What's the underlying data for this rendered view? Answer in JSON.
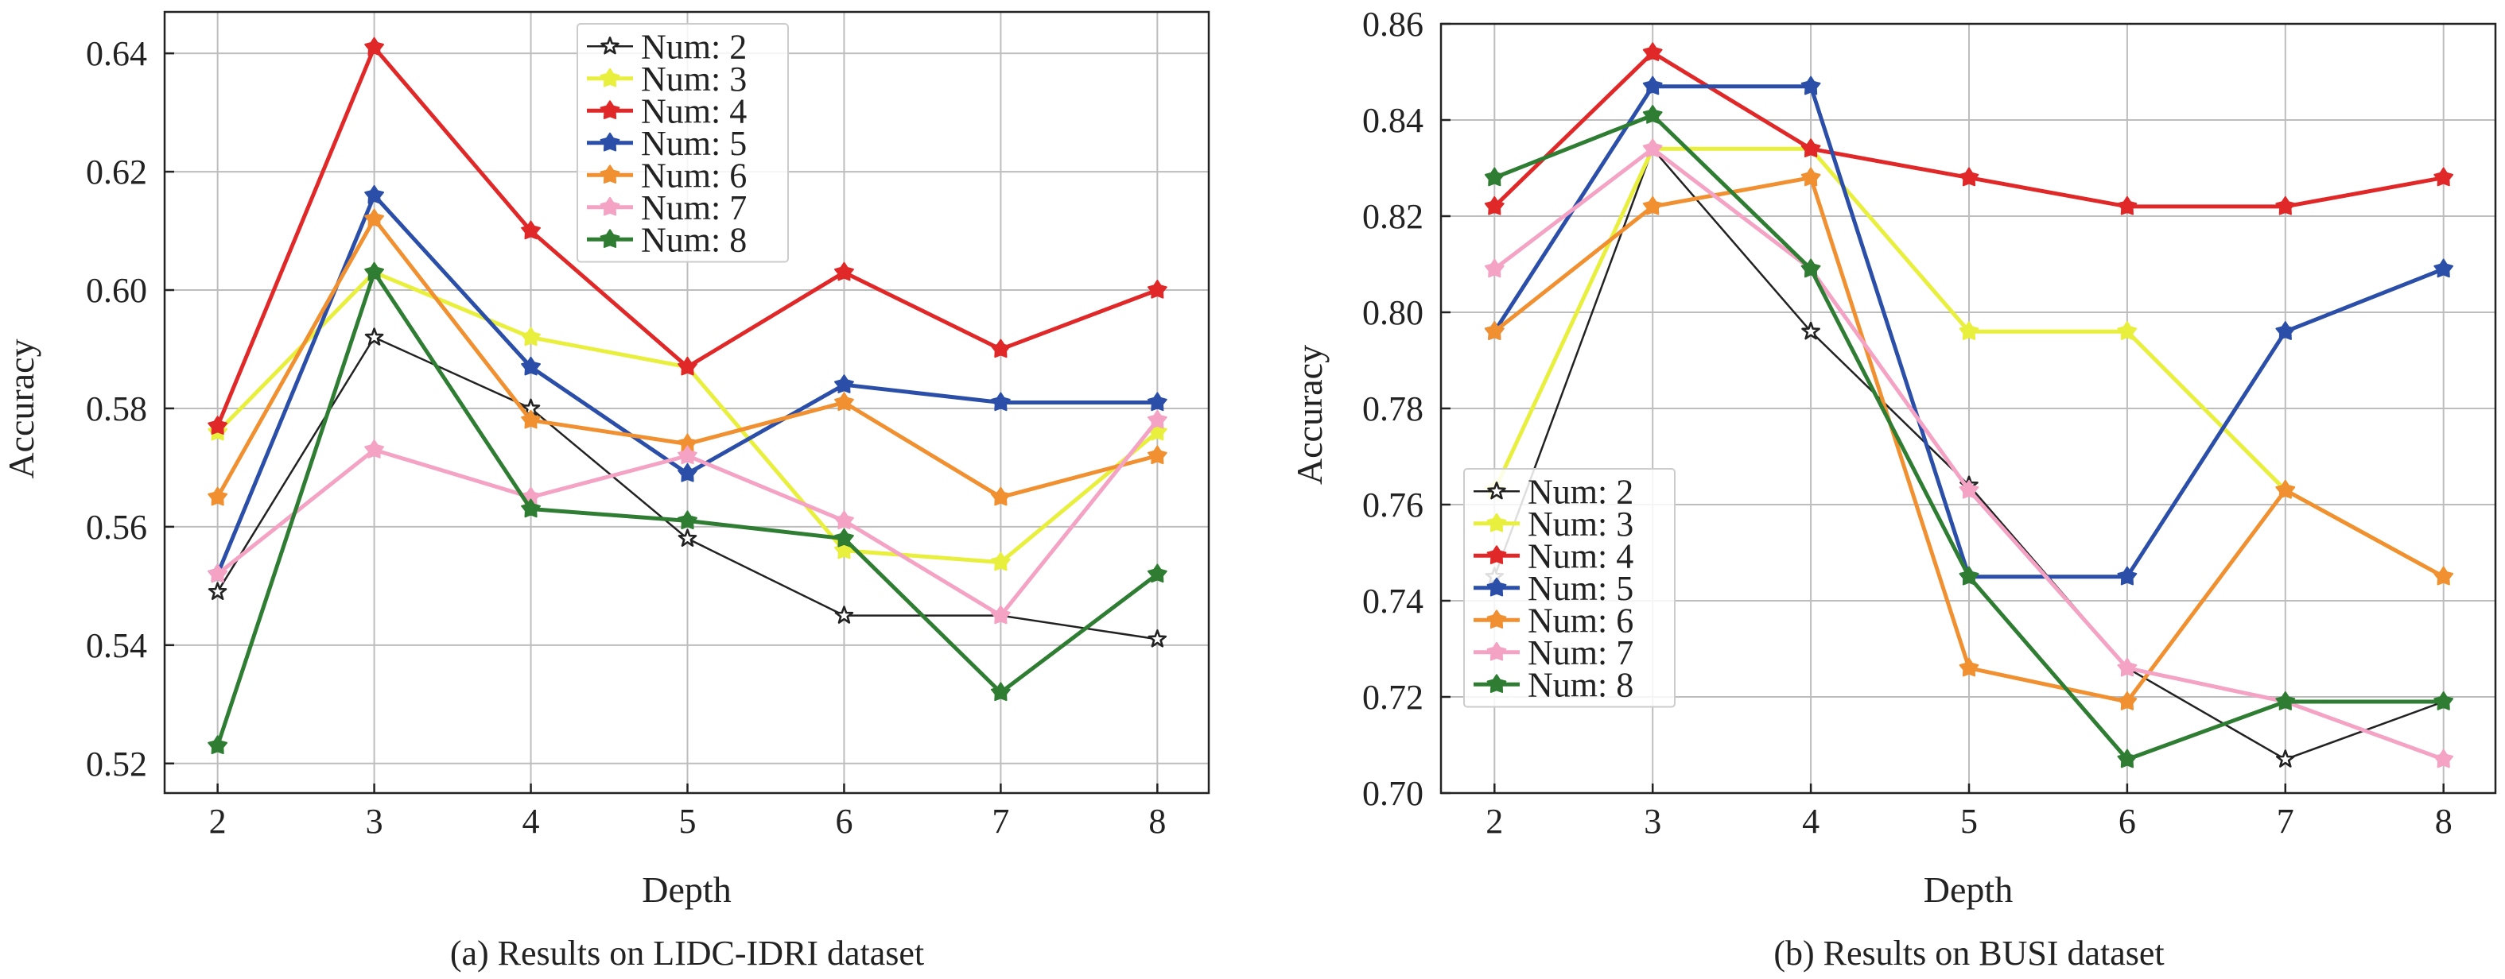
{
  "chart_data": [
    {
      "type": "line",
      "caption": "(a) Results on LIDC-IDRI dataset",
      "xlabel": "Depth",
      "ylabel": "Accuracy",
      "x": [
        2,
        3,
        4,
        5,
        6,
        7,
        8
      ],
      "xticks": [
        "2",
        "3",
        "4",
        "5",
        "6",
        "7",
        "8"
      ],
      "ylim": [
        0.515,
        0.647
      ],
      "yticks": [
        "0.52",
        "0.54",
        "0.56",
        "0.58",
        "0.60",
        "0.62",
        "0.64"
      ],
      "ytick_values": [
        0.52,
        0.54,
        0.56,
        0.58,
        0.6,
        0.62,
        0.64
      ],
      "grid": true,
      "legend_position": "top-center",
      "series": [
        {
          "name": "Num: 2",
          "color": "#222222",
          "marker": "hollow-star",
          "values": [
            0.549,
            0.592,
            0.58,
            0.558,
            0.545,
            0.545,
            0.541
          ]
        },
        {
          "name": "Num: 3",
          "color": "#e8ef3c",
          "marker": "star",
          "values": [
            0.576,
            0.603,
            0.592,
            0.587,
            0.556,
            0.554,
            0.576
          ]
        },
        {
          "name": "Num: 4",
          "color": "#e02828",
          "marker": "star",
          "values": [
            0.577,
            0.641,
            0.61,
            0.587,
            0.603,
            0.59,
            0.6
          ]
        },
        {
          "name": "Num: 5",
          "color": "#2b4fa8",
          "marker": "star",
          "values": [
            0.552,
            0.616,
            0.587,
            0.569,
            0.584,
            0.581,
            0.581
          ]
        },
        {
          "name": "Num: 6",
          "color": "#f09030",
          "marker": "star",
          "values": [
            0.565,
            0.612,
            0.578,
            0.574,
            0.581,
            0.565,
            0.572
          ]
        },
        {
          "name": "Num: 7",
          "color": "#f4a3c4",
          "marker": "star",
          "values": [
            0.552,
            0.573,
            0.565,
            0.572,
            0.561,
            0.545,
            0.578
          ]
        },
        {
          "name": "Num: 8",
          "color": "#2e7d32",
          "marker": "star",
          "values": [
            0.523,
            0.603,
            0.563,
            0.561,
            0.558,
            0.532,
            0.552
          ]
        }
      ]
    },
    {
      "type": "line",
      "caption": "(b) Results on BUSI dataset",
      "xlabel": "Depth",
      "ylabel": "Accuracy",
      "x": [
        2,
        3,
        4,
        5,
        6,
        7,
        8
      ],
      "xticks": [
        "2",
        "3",
        "4",
        "5",
        "6",
        "7",
        "8"
      ],
      "ylim": [
        0.7,
        0.86
      ],
      "yticks": [
        "0.70",
        "0.72",
        "0.74",
        "0.76",
        "0.78",
        "0.80",
        "0.82",
        "0.84",
        "0.86"
      ],
      "ytick_values": [
        0.7,
        0.72,
        0.74,
        0.76,
        0.78,
        0.8,
        0.82,
        0.84,
        0.86
      ],
      "grid": true,
      "legend_position": "bottom-left",
      "series": [
        {
          "name": "Num: 2",
          "color": "#222222",
          "marker": "hollow-star",
          "values": [
            0.745,
            0.834,
            0.796,
            0.764,
            0.726,
            0.707,
            0.719
          ]
        },
        {
          "name": "Num: 3",
          "color": "#e8ef3c",
          "marker": "star",
          "values": [
            0.763,
            0.834,
            0.834,
            0.796,
            0.796,
            0.763,
            0.745
          ]
        },
        {
          "name": "Num: 4",
          "color": "#e02828",
          "marker": "star",
          "values": [
            0.822,
            0.854,
            0.834,
            0.828,
            0.822,
            0.822,
            0.828
          ]
        },
        {
          "name": "Num: 5",
          "color": "#2b4fa8",
          "marker": "star",
          "values": [
            0.796,
            0.847,
            0.847,
            0.745,
            0.745,
            0.796,
            0.809
          ]
        },
        {
          "name": "Num: 6",
          "color": "#f09030",
          "marker": "star",
          "values": [
            0.796,
            0.822,
            0.828,
            0.726,
            0.719,
            0.763,
            0.745
          ]
        },
        {
          "name": "Num: 7",
          "color": "#f4a3c4",
          "marker": "star",
          "values": [
            0.809,
            0.834,
            0.809,
            0.763,
            0.726,
            0.719,
            0.707
          ]
        },
        {
          "name": "Num: 8",
          "color": "#2e7d32",
          "marker": "star",
          "values": [
            0.828,
            0.841,
            0.809,
            0.745,
            0.707,
            0.719,
            0.719
          ]
        }
      ]
    }
  ]
}
